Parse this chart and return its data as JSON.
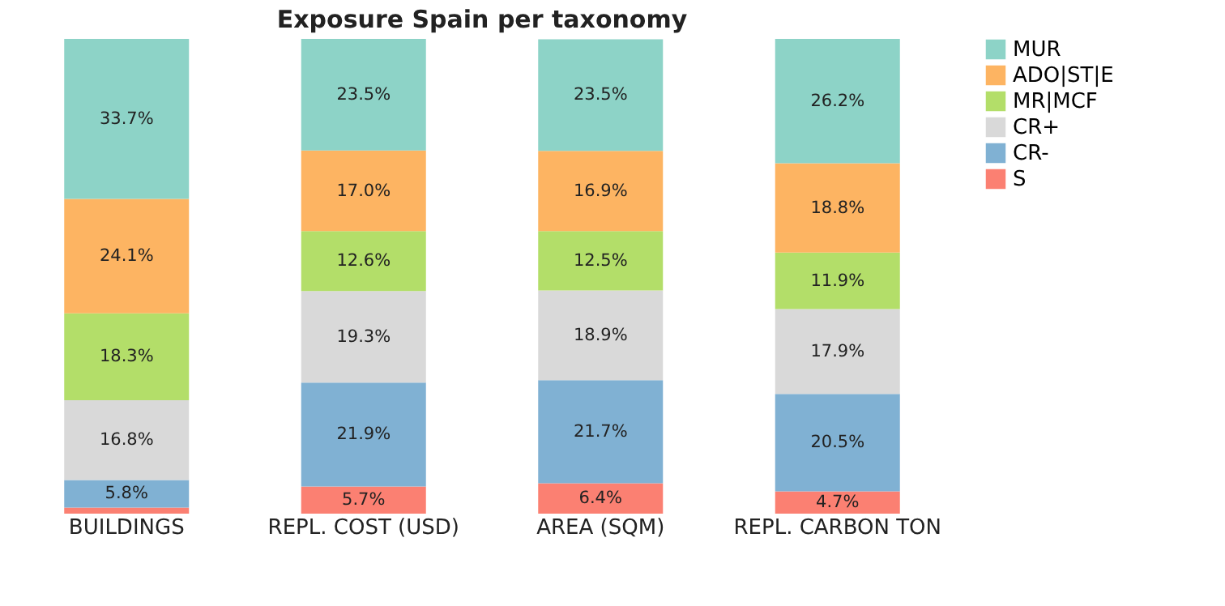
{
  "chart_data": {
    "type": "bar",
    "title": "Exposure Spain per taxonomy",
    "stacked": true,
    "legend": "top right",
    "categories": [
      "BUILDINGS",
      "REPL. COST (USD)",
      "AREA (SQM)",
      "REPL. CARBON TON"
    ],
    "series": [
      {
        "name": "S",
        "color": "#fb8072",
        "values": [
          1.3,
          5.7,
          6.4,
          4.7
        ],
        "value_labels": [
          null,
          "5.7%",
          "6.4%",
          "4.7%"
        ]
      },
      {
        "name": "CR-",
        "color": "#80b1d3",
        "values": [
          5.8,
          21.9,
          21.7,
          20.5
        ],
        "value_labels": [
          "5.8%",
          "21.9%",
          "21.7%",
          "20.5%"
        ]
      },
      {
        "name": "CR+",
        "color": "#d9d9d9",
        "values": [
          16.8,
          19.3,
          18.9,
          17.9
        ],
        "value_labels": [
          "16.8%",
          "19.3%",
          "18.9%",
          "17.9%"
        ]
      },
      {
        "name": "MR|MCF",
        "color": "#b3de69",
        "values": [
          18.3,
          12.6,
          12.5,
          11.9
        ],
        "value_labels": [
          "18.3%",
          "12.6%",
          "12.5%",
          "11.9%"
        ]
      },
      {
        "name": "ADO|ST|E",
        "color": "#fdb462",
        "values": [
          24.1,
          17.0,
          16.9,
          18.8
        ],
        "value_labels": [
          "24.1%",
          "17.0%",
          "16.9%",
          "18.8%"
        ]
      },
      {
        "name": "MUR",
        "color": "#8dd3c7",
        "values": [
          33.7,
          23.5,
          23.5,
          26.2
        ],
        "value_labels": [
          "33.7%",
          "23.5%",
          "23.5%",
          "26.2%"
        ]
      }
    ]
  }
}
